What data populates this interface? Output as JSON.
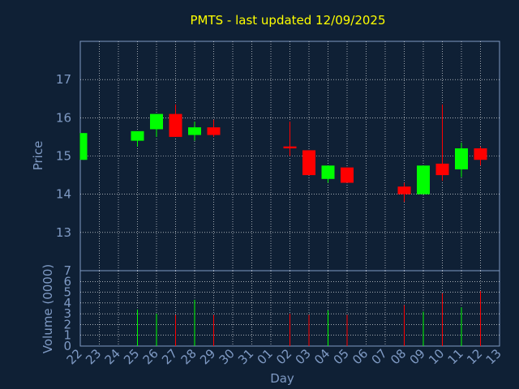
{
  "chart_data": {
    "type": "candlestick",
    "title": "PMTS - last updated 12/09/2025",
    "xlabel": "Day",
    "ylabel": "Price",
    "volume_label": "Volume (0000)",
    "price_ylim": [
      12,
      18
    ],
    "price_ticks": [
      13,
      14,
      15,
      16,
      17
    ],
    "volume_ylim": [
      0,
      7
    ],
    "volume_ticks": [
      0,
      1,
      2,
      3,
      4,
      5,
      6,
      7
    ],
    "grid": true,
    "colors": {
      "up": "#00ff00",
      "down": "#ff0000",
      "background": "#0f2035",
      "plot": "#0f2035",
      "axis": "#7f9ac4",
      "title": "#ffff00"
    },
    "x_labels": [
      "22",
      "23",
      "24",
      "25",
      "26",
      "27",
      "28",
      "29",
      "30",
      "31",
      "01",
      "02",
      "03",
      "04",
      "05",
      "06",
      "07",
      "08",
      "09",
      "10",
      "11",
      "12",
      "13"
    ],
    "candles": [
      {
        "x": "22",
        "open": 14.9,
        "high": 15.6,
        "low": 14.9,
        "close": 15.6,
        "volume": 0
      },
      {
        "x": "25",
        "open": 15.4,
        "high": 15.65,
        "low": 15.25,
        "close": 15.65,
        "volume": 3.4
      },
      {
        "x": "26",
        "open": 15.7,
        "high": 16.1,
        "low": 15.5,
        "close": 16.1,
        "volume": 3.0
      },
      {
        "x": "27",
        "open": 16.1,
        "high": 16.35,
        "low": 15.5,
        "close": 15.5,
        "volume": 2.9
      },
      {
        "x": "28",
        "open": 15.55,
        "high": 15.9,
        "low": 15.4,
        "close": 15.75,
        "volume": 4.3
      },
      {
        "x": "29",
        "open": 15.75,
        "high": 15.95,
        "low": 15.5,
        "close": 15.55,
        "volume": 2.9
      },
      {
        "x": "02",
        "open": 15.25,
        "high": 15.9,
        "low": 15.0,
        "close": 15.2,
        "volume": 3.0
      },
      {
        "x": "03",
        "open": 15.15,
        "high": 15.15,
        "low": 14.5,
        "close": 14.5,
        "volume": 2.9
      },
      {
        "x": "04",
        "open": 14.4,
        "high": 14.75,
        "low": 14.3,
        "close": 14.75,
        "volume": 3.3
      },
      {
        "x": "05",
        "open": 14.7,
        "high": 14.7,
        "low": 14.3,
        "close": 14.3,
        "volume": 2.9
      },
      {
        "x": "08",
        "open": 14.2,
        "high": 14.3,
        "low": 13.8,
        "close": 14.0,
        "volume": 3.8
      },
      {
        "x": "09",
        "open": 14.0,
        "high": 14.75,
        "low": 14.0,
        "close": 14.75,
        "volume": 3.2
      },
      {
        "x": "10",
        "open": 14.8,
        "high": 16.35,
        "low": 14.35,
        "close": 14.5,
        "volume": 4.9
      },
      {
        "x": "11",
        "open": 14.65,
        "high": 15.35,
        "low": 14.45,
        "close": 15.2,
        "volume": 3.6
      },
      {
        "x": "12",
        "open": 15.2,
        "high": 15.25,
        "low": 14.75,
        "close": 14.9,
        "volume": 5.1
      }
    ]
  }
}
